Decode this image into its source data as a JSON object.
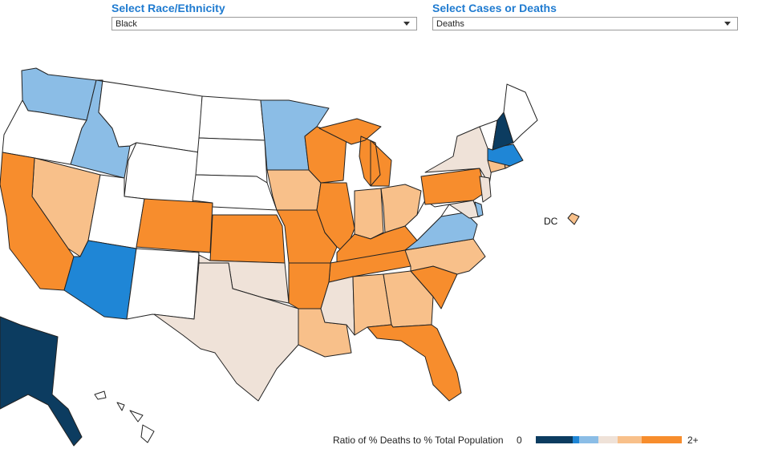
{
  "filters": {
    "race": {
      "label": "Select Race/Ethnicity",
      "value": "Black"
    },
    "measure": {
      "label": "Select Cases or Deaths",
      "value": "Deaths"
    }
  },
  "map": {
    "dc_label": "DC",
    "colors": {
      "very_low": "#0c3c60",
      "low": "#1f86d6",
      "below": "#8bbde6",
      "near": "#efe2d8",
      "above": "#f8c08a",
      "high": "#f78d2d",
      "none": "#ffffff"
    }
  },
  "legend": {
    "title": "Ratio of % Deaths to % Total Population",
    "min_label": "0",
    "max_label": "2+",
    "stops": [
      "#0c3c60",
      "#1f86d6",
      "#8bbde6",
      "#efe2d8",
      "#f8c08a",
      "#f78d2d"
    ]
  }
}
